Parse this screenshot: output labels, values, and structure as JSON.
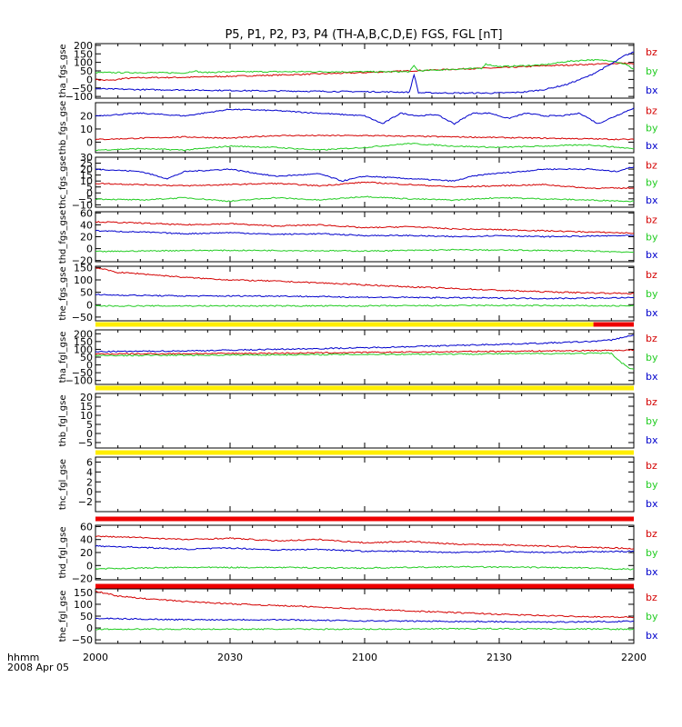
{
  "title": "P5, P1, P2, P3, P4 (TH-A,B,C,D,E) FGS, FGL [nT]",
  "colors": {
    "bz": "#d40000",
    "by": "#22cc22",
    "bx": "#0000cc",
    "bar_yellow": "#ffee00",
    "bar_red": "#ee0000"
  },
  "x_axis": {
    "tick_labels": [
      "2000",
      "2030",
      "2100",
      "2130",
      "2200"
    ],
    "tick_minutes": [
      0,
      30,
      60,
      90,
      120
    ],
    "range_minutes": [
      0,
      120
    ],
    "corner_label_1": "hhmm",
    "corner_label_2": "2008 Apr 05"
  },
  "chart_data": [
    {
      "type": "line",
      "ylabel": "tha_fgs_gse",
      "ylim": [
        -110,
        210
      ],
      "yticks": [
        200,
        150,
        100,
        50,
        0,
        -50,
        -100
      ],
      "ytick_labels": [
        "200",
        "150",
        "100",
        "50",
        "0",
        "−50",
        "−100"
      ],
      "series": [
        {
          "name": "bz",
          "color": "bz",
          "x": [
            0,
            2,
            4,
            6,
            10,
            20,
            40,
            60,
            80,
            90,
            100,
            110,
            118,
            120
          ],
          "y": [
            0,
            -5,
            -5,
            5,
            10,
            12,
            25,
            40,
            60,
            68,
            80,
            88,
            95,
            90
          ]
        },
        {
          "name": "by",
          "color": "by",
          "x": [
            0,
            5,
            10,
            20,
            22,
            24,
            30,
            50,
            70,
            71,
            72,
            80,
            86,
            87,
            90,
            100,
            105,
            110,
            115,
            118,
            120
          ],
          "y": [
            40,
            40,
            40,
            38,
            50,
            40,
            45,
            45,
            45,
            80,
            50,
            60,
            65,
            90,
            75,
            85,
            105,
            115,
            110,
            90,
            60
          ]
        },
        {
          "name": "bx",
          "color": "bx",
          "x": [
            0,
            10,
            20,
            40,
            60,
            70,
            71,
            72,
            80,
            86,
            90,
            95,
            100,
            105,
            110,
            115,
            118,
            120
          ],
          "y": [
            -55,
            -60,
            -62,
            -68,
            -72,
            -75,
            30,
            -78,
            -80,
            -80,
            -80,
            -75,
            -60,
            -30,
            20,
            90,
            140,
            160
          ]
        }
      ],
      "labels": [
        "bz",
        "by",
        "bx"
      ]
    },
    {
      "type": "line",
      "ylabel": "thb_fgs_gse",
      "ylim": [
        -8,
        30
      ],
      "yticks": [
        20,
        10,
        0
      ],
      "ytick_labels": [
        "20",
        "10",
        "0"
      ],
      "series": [
        {
          "name": "bx",
          "color": "bx",
          "x": [
            0,
            10,
            20,
            30,
            40,
            50,
            60,
            64,
            68,
            72,
            76,
            80,
            84,
            88,
            92,
            96,
            100,
            104,
            108,
            112,
            116,
            120
          ],
          "y": [
            20,
            22,
            20,
            25,
            24,
            22,
            20,
            14,
            22,
            20,
            21,
            14,
            22,
            22,
            18,
            22,
            20,
            20,
            22,
            14,
            20,
            26
          ]
        },
        {
          "name": "bz",
          "color": "bz",
          "x": [
            0,
            10,
            20,
            30,
            40,
            60,
            80,
            100,
            120
          ],
          "y": [
            2,
            3,
            4,
            3,
            5,
            5,
            4,
            3,
            2
          ]
        },
        {
          "name": "by",
          "color": "by",
          "x": [
            0,
            10,
            20,
            30,
            40,
            50,
            60,
            70,
            80,
            90,
            100,
            110,
            120
          ],
          "y": [
            -6,
            -5,
            -6,
            -3,
            -4,
            -6,
            -4,
            -1,
            -3,
            -4,
            -3,
            -2,
            -5
          ]
        }
      ],
      "labels": [
        "bz",
        "by",
        "bx"
      ]
    },
    {
      "type": "line",
      "ylabel": "thc_fgs_gse",
      "ylim": [
        -12,
        30
      ],
      "yticks": [
        30,
        25,
        20,
        15,
        10,
        5,
        0,
        -5,
        -10
      ],
      "ytick_labels": [
        "30",
        "25",
        "20",
        "15",
        "10",
        "5",
        "0",
        "−5",
        "−10"
      ],
      "series": [
        {
          "name": "bx",
          "color": "bx",
          "x": [
            0,
            10,
            16,
            20,
            30,
            40,
            50,
            55,
            60,
            70,
            80,
            84,
            88,
            95,
            100,
            110,
            116,
            120
          ],
          "y": [
            20,
            18,
            12,
            18,
            20,
            14,
            16,
            10,
            14,
            12,
            10,
            14,
            16,
            18,
            20,
            20,
            18,
            22
          ]
        },
        {
          "name": "bz",
          "color": "bz",
          "x": [
            0,
            10,
            20,
            30,
            40,
            50,
            60,
            70,
            80,
            90,
            100,
            110,
            120
          ],
          "y": [
            8,
            7,
            6,
            7,
            8,
            6,
            9,
            7,
            5,
            6,
            7,
            4,
            4
          ]
        },
        {
          "name": "by",
          "color": "by",
          "x": [
            0,
            10,
            20,
            30,
            40,
            50,
            60,
            70,
            80,
            90,
            100,
            110,
            120
          ],
          "y": [
            -5,
            -6,
            -4,
            -7,
            -4,
            -6,
            -3,
            -5,
            -6,
            -4,
            -5,
            -6,
            -7
          ]
        }
      ],
      "labels": [
        "bz",
        "by",
        "bx"
      ]
    },
    {
      "type": "line",
      "ylabel": "thd_fgs_gse",
      "ylim": [
        -22,
        62
      ],
      "yticks": [
        60,
        40,
        20,
        0,
        -20
      ],
      "ytick_labels": [
        "60",
        "40",
        "20",
        "0",
        "−20"
      ],
      "series": [
        {
          "name": "bz",
          "color": "bz",
          "x": [
            0,
            10,
            20,
            30,
            40,
            50,
            60,
            70,
            80,
            90,
            100,
            110,
            120
          ],
          "y": [
            45,
            43,
            40,
            42,
            38,
            40,
            35,
            37,
            33,
            32,
            30,
            28,
            26
          ]
        },
        {
          "name": "bx",
          "color": "bx",
          "x": [
            0,
            10,
            20,
            30,
            40,
            50,
            60,
            70,
            80,
            90,
            100,
            110,
            120
          ],
          "y": [
            30,
            28,
            25,
            27,
            24,
            25,
            22,
            22,
            20,
            22,
            20,
            21,
            22
          ]
        },
        {
          "name": "by",
          "color": "by",
          "x": [
            0,
            20,
            40,
            60,
            80,
            100,
            110,
            120
          ],
          "y": [
            -5,
            -3,
            -3,
            -4,
            -2,
            -3,
            -4,
            -6
          ]
        }
      ],
      "labels": [
        "bz",
        "by",
        "bx"
      ]
    },
    {
      "type": "line",
      "ylabel": "the_fgs_gse",
      "ylim": [
        -65,
        155
      ],
      "yticks": [
        150,
        100,
        50,
        0,
        -50
      ],
      "ytick_labels": [
        "150",
        "100",
        "50",
        "0",
        "−50"
      ],
      "series": [
        {
          "name": "bz",
          "color": "bz",
          "x": [
            0,
            5,
            10,
            20,
            30,
            40,
            50,
            60,
            70,
            80,
            90,
            100,
            110,
            120
          ],
          "y": [
            150,
            130,
            125,
            110,
            100,
            95,
            88,
            80,
            72,
            65,
            58,
            52,
            48,
            45
          ]
        },
        {
          "name": "bx",
          "color": "bx",
          "x": [
            0,
            20,
            40,
            60,
            80,
            100,
            120
          ],
          "y": [
            40,
            35,
            35,
            30,
            28,
            25,
            28
          ]
        },
        {
          "name": "by",
          "color": "by",
          "x": [
            0,
            30,
            60,
            90,
            120
          ],
          "y": [
            -5,
            -5,
            -5,
            -3,
            -5
          ]
        }
      ],
      "labels": [
        "bz",
        "by",
        "bx"
      ]
    },
    {
      "type": "line",
      "ylabel": "tha_fgl_gse",
      "ylim": [
        -125,
        225
      ],
      "yticks": [
        200,
        150,
        100,
        50,
        0,
        -50,
        -100
      ],
      "ytick_labels": [
        "200",
        "150",
        "100",
        "50",
        "0",
        "−50",
        "−100"
      ],
      "series": [
        {
          "name": "bx",
          "color": "bx",
          "x": [
            0,
            20,
            40,
            60,
            80,
            100,
            110,
            115,
            118,
            120
          ],
          "y": [
            85,
            90,
            100,
            110,
            125,
            140,
            150,
            160,
            180,
            190
          ]
        },
        {
          "name": "bz",
          "color": "bz",
          "x": [
            0,
            40,
            80,
            110,
            120
          ],
          "y": [
            70,
            75,
            85,
            92,
            95
          ]
        },
        {
          "name": "by",
          "color": "by",
          "x": [
            0,
            40,
            80,
            115,
            117,
            119,
            120
          ],
          "y": [
            60,
            65,
            70,
            75,
            20,
            -20,
            -30
          ]
        }
      ],
      "labels": [
        "bz",
        "by",
        "bx"
      ]
    },
    {
      "type": "line",
      "ylabel": "thb_fgl_gse",
      "ylim": [
        -8,
        22
      ],
      "yticks": [
        20,
        15,
        10,
        5,
        0,
        -5
      ],
      "ytick_labels": [
        "20",
        "15",
        "10",
        "5",
        "0",
        "−5"
      ],
      "series": [],
      "labels": [
        "bz",
        "by",
        "bx"
      ]
    },
    {
      "type": "line",
      "ylabel": "thc_fgl_gse",
      "ylim": [
        -4,
        7
      ],
      "yticks": [
        6,
        4,
        2,
        0,
        -2
      ],
      "ytick_labels": [
        "6",
        "4",
        "2",
        "0",
        "−2"
      ],
      "series": [],
      "labels": [
        "bz",
        "by",
        "bx"
      ]
    },
    {
      "type": "line",
      "ylabel": "thd_fgl_gse",
      "ylim": [
        -22,
        62
      ],
      "yticks": [
        60,
        40,
        20,
        0,
        -20
      ],
      "ytick_labels": [
        "60",
        "40",
        "20",
        "0",
        "−20"
      ],
      "series": [
        {
          "name": "bz",
          "color": "bz",
          "x": [
            0,
            10,
            20,
            30,
            40,
            50,
            60,
            70,
            80,
            90,
            100,
            110,
            120
          ],
          "y": [
            45,
            43,
            40,
            42,
            38,
            40,
            35,
            37,
            33,
            32,
            30,
            28,
            26
          ]
        },
        {
          "name": "bx",
          "color": "bx",
          "x": [
            0,
            10,
            20,
            30,
            40,
            50,
            60,
            70,
            80,
            90,
            100,
            110,
            120
          ],
          "y": [
            30,
            28,
            25,
            27,
            24,
            25,
            22,
            22,
            20,
            22,
            20,
            21,
            22
          ]
        },
        {
          "name": "by",
          "color": "by",
          "x": [
            0,
            20,
            40,
            60,
            80,
            100,
            110,
            120
          ],
          "y": [
            -5,
            -3,
            -3,
            -4,
            -2,
            -3,
            -4,
            -6
          ]
        }
      ],
      "labels": [
        "bz",
        "by",
        "bx"
      ]
    },
    {
      "type": "line",
      "ylabel": "the_fgl_gse",
      "ylim": [
        -65,
        165
      ],
      "yticks": [
        150,
        100,
        50,
        0,
        -50
      ],
      "ytick_labels": [
        "150",
        "100",
        "50",
        "0",
        "−50"
      ],
      "series": [
        {
          "name": "bz",
          "color": "bz",
          "x": [
            0,
            5,
            10,
            20,
            30,
            40,
            50,
            60,
            70,
            80,
            90,
            100,
            110,
            120
          ],
          "y": [
            155,
            135,
            125,
            112,
            102,
            95,
            88,
            80,
            72,
            65,
            58,
            52,
            48,
            45
          ]
        },
        {
          "name": "bx",
          "color": "bx",
          "x": [
            0,
            20,
            40,
            60,
            80,
            100,
            120
          ],
          "y": [
            40,
            35,
            35,
            30,
            28,
            25,
            28
          ]
        },
        {
          "name": "by",
          "color": "by",
          "x": [
            0,
            30,
            60,
            90,
            120
          ],
          "y": [
            -5,
            -5,
            -5,
            -3,
            -5
          ]
        }
      ],
      "labels": [
        "bz",
        "by",
        "bx"
      ]
    }
  ],
  "status_bars": [
    {
      "after_panel": 4,
      "segments": [
        {
          "from": 0,
          "to": 111,
          "color": "bar_yellow"
        },
        {
          "from": 111,
          "to": 120,
          "color": "bar_red"
        }
      ]
    },
    {
      "after_panel": 5,
      "segments": [
        {
          "from": 0,
          "to": 120,
          "color": "bar_yellow"
        }
      ]
    },
    {
      "after_panel": 6,
      "segments": [
        {
          "from": 0,
          "to": 120,
          "color": "bar_yellow"
        }
      ]
    },
    {
      "after_panel": 7,
      "segments": [
        {
          "from": 0,
          "to": 120,
          "color": "bar_red"
        }
      ]
    },
    {
      "after_panel": 8,
      "segments": [
        {
          "from": 0,
          "to": 120,
          "color": "bar_red"
        }
      ]
    }
  ]
}
